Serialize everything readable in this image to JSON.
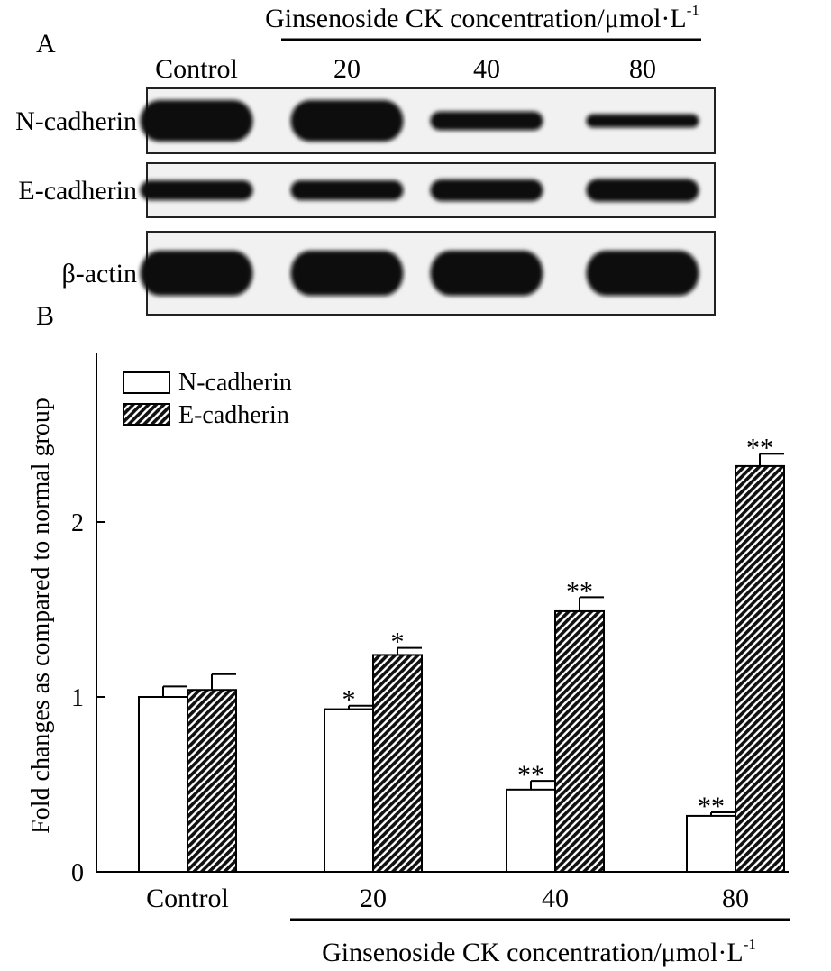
{
  "panel_a": {
    "letter": "A",
    "header_prefix": "Ginsenoside CK concentration/μmol·L",
    "header_sup": "-1",
    "lanes": [
      "Control",
      "20",
      "40",
      "80"
    ],
    "rows": [
      {
        "label": "N-cadherin",
        "intensity": [
          1.0,
          1.0,
          0.45,
          0.32
        ]
      },
      {
        "label": "E-cadherin",
        "intensity": [
          1.0,
          1.0,
          1.1,
          1.15
        ]
      },
      {
        "label": "β-actin",
        "intensity": [
          1.0,
          1.0,
          1.0,
          1.0
        ]
      }
    ]
  },
  "panel_b": {
    "letter": "B"
  },
  "chart_data": {
    "type": "bar",
    "categories": [
      "Control",
      "20",
      "40",
      "80"
    ],
    "series": [
      {
        "name": "N-cadherin",
        "fill": "open",
        "values": [
          1.0,
          0.93,
          0.47,
          0.32
        ],
        "errors": [
          0.06,
          0.02,
          0.05,
          0.02
        ],
        "annotations": [
          "",
          "*",
          "**",
          "**"
        ]
      },
      {
        "name": "E-cadherin",
        "fill": "hatched",
        "values": [
          1.04,
          1.24,
          1.49,
          2.32
        ],
        "errors": [
          0.09,
          0.04,
          0.08,
          0.07
        ],
        "annotations": [
          "",
          "*",
          "**",
          "**"
        ]
      }
    ],
    "ylabel": "Fold changes as compared to normal group",
    "xlabel_prefix": "Ginsenoside CK concentration/μmol·L",
    "xlabel_sup": "-1",
    "yticks": [
      0,
      1,
      2
    ],
    "ylim": [
      0,
      2.95
    ],
    "legend_position": "top-left",
    "grid": false
  }
}
